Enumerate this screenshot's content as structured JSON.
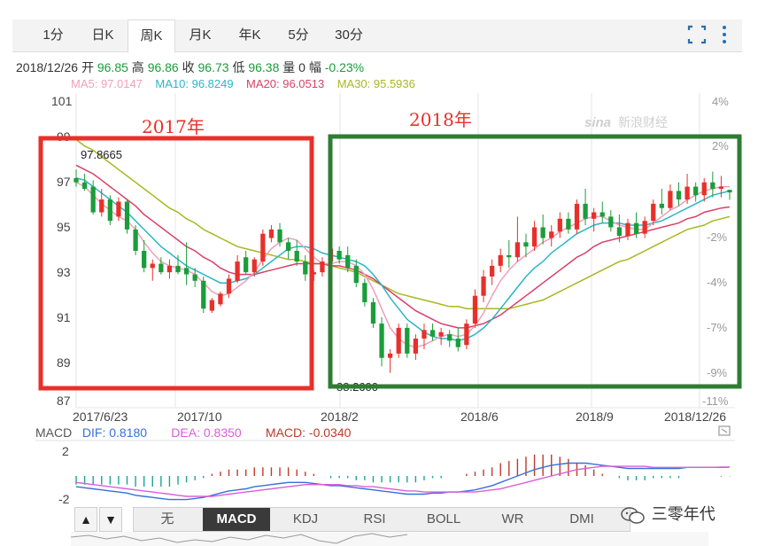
{
  "tabs": [
    "1分",
    "日K",
    "周K",
    "月K",
    "年K",
    "5分",
    "30分"
  ],
  "active_tab": "周K",
  "info": {
    "date": "2018/12/26",
    "open_label": "开",
    "open": "96.85",
    "high_label": "高",
    "high": "96.86",
    "close_label": "收",
    "close": "96.73",
    "low_label": "低",
    "low": "96.38",
    "volume_label": "量",
    "volume": "0",
    "change_label": "幅",
    "change": "-0.23%"
  },
  "ma": {
    "ma5": "MA5: 97.0147",
    "ma10": "MA10: 96.8249",
    "ma20": "MA20: 96.0513",
    "ma30": "MA30: 95.5936"
  },
  "colors": {
    "ma5": "#f0a0b8",
    "ma10": "#2bb5c8",
    "ma20": "#d9416a",
    "ma30": "#a8b820",
    "up": "#e8302a",
    "down": "#1a9d3a",
    "box2017": "#e8302a",
    "box2018": "#2e7d32"
  },
  "annotations": {
    "box2017_label": "2017年",
    "box2018_label": "2018年",
    "high_marker": "97.8665",
    "low_marker": "88.2600",
    "source_logo": "新浪财经",
    "source_logo_prefix": "sina"
  },
  "macd_bar": {
    "macd_label": "MACD",
    "dif": "DIF: 0.8180",
    "dea": "DEA: 0.8350",
    "macd": "MACD: -0.0340",
    "y_top": "2",
    "y_bottom": "-2"
  },
  "indicator_tabs": [
    "无",
    "MACD",
    "KDJ",
    "RSI",
    "BOLL",
    "WR",
    "DMI"
  ],
  "active_indicator": "MACD",
  "arrows": {
    "up": "▲",
    "down": "▼"
  },
  "watermark": "三零年代",
  "chart_data": {
    "type": "candlestick",
    "y_ticks": [
      "101",
      "99",
      "97",
      "95",
      "93",
      "91",
      "89",
      "87"
    ],
    "ylim": [
      87,
      101
    ],
    "pct_ticks": [
      "4%",
      "2%",
      "-2%",
      "-4%",
      "-7%",
      "-9%",
      "-11%"
    ],
    "x_ticks": [
      "2017/6/23",
      "2017/10",
      "2018/2",
      "2018/6",
      "2018/9",
      "2018/12/26"
    ],
    "candles": [
      [
        97.4,
        97.8,
        97.0,
        97.2
      ],
      [
        97.2,
        97.6,
        96.8,
        96.9
      ],
      [
        97.0,
        97.3,
        95.7,
        95.8
      ],
      [
        95.8,
        96.9,
        95.6,
        96.4
      ],
      [
        96.4,
        96.6,
        95.2,
        95.4
      ],
      [
        95.6,
        96.5,
        95.4,
        96.3
      ],
      [
        96.3,
        96.4,
        94.8,
        95.0
      ],
      [
        95.0,
        95.2,
        93.8,
        94.0
      ],
      [
        94.0,
        94.5,
        93.0,
        93.2
      ],
      [
        93.2,
        93.6,
        92.6,
        93.4
      ],
      [
        93.4,
        93.7,
        92.9,
        93.0
      ],
      [
        93.0,
        93.6,
        92.7,
        93.3
      ],
      [
        93.3,
        93.8,
        92.9,
        93.0
      ],
      [
        93.2,
        94.4,
        92.4,
        92.9
      ],
      [
        92.9,
        93.2,
        92.3,
        92.6
      ],
      [
        92.6,
        92.8,
        91.1,
        91.3
      ],
      [
        91.2,
        91.8,
        91.1,
        91.7
      ],
      [
        91.5,
        92.1,
        91.4,
        92.0
      ],
      [
        92.0,
        92.9,
        91.8,
        92.7
      ],
      [
        92.6,
        93.8,
        92.5,
        93.5
      ],
      [
        93.7,
        94.0,
        92.9,
        93.0
      ],
      [
        93.0,
        93.7,
        92.8,
        93.6
      ],
      [
        93.5,
        95.0,
        93.3,
        94.8
      ],
      [
        94.6,
        95.2,
        94.4,
        95.0
      ],
      [
        95.0,
        95.3,
        94.2,
        94.4
      ],
      [
        94.4,
        94.6,
        93.6,
        94.0
      ],
      [
        94.0,
        94.5,
        93.3,
        93.5
      ],
      [
        93.5,
        93.8,
        92.6,
        92.9
      ],
      [
        92.9,
        93.1,
        92.6,
        93.0
      ],
      [
        93.0,
        93.7,
        92.8,
        93.5
      ],
      [
        93.5,
        94.4,
        93.2,
        94.1
      ],
      [
        94.0,
        94.2,
        93.4,
        93.6
      ],
      [
        93.8,
        94.2,
        93.0,
        93.2
      ],
      [
        93.3,
        93.6,
        92.3,
        92.5
      ],
      [
        92.5,
        92.7,
        91.4,
        91.6
      ],
      [
        91.6,
        91.8,
        90.4,
        90.6
      ],
      [
        90.6,
        90.9,
        88.6,
        89.0
      ],
      [
        89.0,
        89.4,
        88.3,
        89.2
      ],
      [
        89.2,
        90.6,
        89.0,
        90.4
      ],
      [
        90.4,
        90.6,
        89.0,
        89.2
      ],
      [
        89.2,
        90.1,
        88.9,
        89.9
      ],
      [
        89.9,
        90.6,
        89.4,
        90.3
      ],
      [
        90.3,
        90.6,
        89.8,
        90.0
      ],
      [
        90.0,
        90.4,
        89.6,
        90.2
      ],
      [
        90.1,
        90.3,
        89.5,
        89.8
      ],
      [
        89.9,
        90.4,
        89.3,
        89.5
      ],
      [
        89.6,
        90.8,
        89.4,
        90.6
      ],
      [
        90.6,
        92.2,
        90.4,
        91.9
      ],
      [
        91.9,
        93.1,
        91.6,
        92.8
      ],
      [
        92.8,
        93.6,
        92.4,
        93.3
      ],
      [
        93.3,
        94.1,
        93.0,
        93.8
      ],
      [
        93.8,
        94.5,
        93.2,
        93.7
      ],
      [
        93.7,
        95.6,
        93.5,
        94.4
      ],
      [
        94.4,
        94.8,
        93.7,
        94.2
      ],
      [
        94.2,
        95.4,
        94.0,
        95.1
      ],
      [
        95.1,
        95.7,
        94.3,
        94.6
      ],
      [
        94.6,
        95.2,
        94.2,
        94.9
      ],
      [
        94.9,
        95.8,
        94.6,
        95.5
      ],
      [
        95.5,
        95.8,
        94.8,
        95.0
      ],
      [
        95.0,
        96.4,
        94.8,
        96.2
      ],
      [
        96.2,
        96.9,
        95.2,
        95.5
      ],
      [
        95.5,
        96.0,
        94.9,
        95.8
      ],
      [
        95.8,
        96.3,
        95.3,
        95.6
      ],
      [
        95.6,
        95.9,
        94.9,
        95.1
      ],
      [
        95.1,
        95.7,
        94.4,
        94.7
      ],
      [
        94.7,
        95.5,
        94.5,
        95.3
      ],
      [
        95.3,
        95.8,
        94.6,
        94.8
      ],
      [
        94.8,
        95.6,
        94.6,
        95.4
      ],
      [
        95.4,
        96.4,
        95.2,
        96.2
      ],
      [
        96.2,
        96.9,
        95.7,
        96.0
      ],
      [
        96.0,
        97.1,
        95.9,
        96.8
      ],
      [
        96.8,
        97.2,
        96.1,
        96.4
      ],
      [
        96.4,
        97.6,
        96.2,
        97.0
      ],
      [
        97.0,
        97.2,
        96.3,
        96.6
      ],
      [
        96.6,
        97.4,
        96.3,
        97.2
      ],
      [
        97.2,
        97.7,
        96.5,
        96.9
      ],
      [
        96.9,
        97.5,
        96.5,
        97.0
      ],
      [
        96.85,
        96.86,
        96.38,
        96.73
      ]
    ],
    "ma5": [
      97.2,
      97.0,
      96.6,
      96.2,
      95.9,
      95.6,
      95.4,
      95.0,
      94.4,
      93.9,
      93.5,
      93.3,
      93.2,
      93.1,
      92.9,
      92.5,
      92.1,
      91.9,
      92.0,
      92.3,
      92.6,
      93.0,
      93.6,
      94.1,
      94.4,
      94.6,
      94.5,
      94.1,
      93.7,
      93.4,
      93.4,
      93.5,
      93.5,
      93.3,
      92.9,
      92.2,
      91.3,
      90.4,
      89.9,
      89.6,
      89.5,
      89.6,
      89.8,
      90.0,
      90.1,
      90.0,
      90.1,
      90.5,
      91.1,
      91.9,
      92.6,
      93.1,
      93.5,
      93.8,
      94.1,
      94.4,
      94.6,
      94.9,
      95.1,
      95.3,
      95.5,
      95.6,
      95.6,
      95.4,
      95.2,
      95.1,
      95.0,
      95.0,
      95.3,
      95.6,
      95.9,
      96.1,
      96.4,
      96.6,
      96.8,
      96.9,
      97.0,
      97.0
    ],
    "ma10": [
      97.4,
      97.3,
      97.0,
      96.7,
      96.4,
      96.1,
      95.8,
      95.4,
      95.0,
      94.6,
      94.2,
      93.9,
      93.6,
      93.3,
      93.1,
      92.9,
      92.7,
      92.5,
      92.5,
      92.6,
      92.7,
      92.9,
      93.2,
      93.5,
      93.8,
      94.1,
      94.2,
      94.2,
      94.1,
      93.9,
      93.8,
      93.7,
      93.6,
      93.5,
      93.3,
      92.9,
      92.4,
      91.8,
      91.3,
      90.8,
      90.5,
      90.2,
      90.0,
      89.9,
      89.9,
      89.8,
      89.9,
      90.1,
      90.4,
      90.8,
      91.3,
      91.8,
      92.3,
      92.8,
      93.2,
      93.5,
      93.9,
      94.2,
      94.5,
      94.8,
      95.0,
      95.2,
      95.3,
      95.3,
      95.3,
      95.2,
      95.2,
      95.2,
      95.3,
      95.4,
      95.6,
      95.8,
      96.0,
      96.2,
      96.4,
      96.6,
      96.7,
      96.8
    ],
    "ma20": [
      98.0,
      97.8,
      97.6,
      97.3,
      97.0,
      96.7,
      96.4,
      96.1,
      95.7,
      95.4,
      95.1,
      94.8,
      94.5,
      94.2,
      94.0,
      93.7,
      93.5,
      93.2,
      93.0,
      92.9,
      92.9,
      92.9,
      93.0,
      93.1,
      93.2,
      93.3,
      93.4,
      93.4,
      93.4,
      93.4,
      93.3,
      93.3,
      93.2,
      93.1,
      92.9,
      92.7,
      92.4,
      92.1,
      91.8,
      91.5,
      91.2,
      91.0,
      90.8,
      90.6,
      90.5,
      90.4,
      90.4,
      90.5,
      90.6,
      90.8,
      91.0,
      91.3,
      91.6,
      91.9,
      92.2,
      92.5,
      92.8,
      93.1,
      93.4,
      93.7,
      93.9,
      94.2,
      94.4,
      94.5,
      94.6,
      94.7,
      94.8,
      94.9,
      95.0,
      95.1,
      95.2,
      95.3,
      95.5,
      95.6,
      95.8,
      95.9,
      96.0,
      96.05
    ],
    "ma30": [
      99.2,
      98.9,
      98.7,
      98.4,
      98.1,
      97.8,
      97.5,
      97.2,
      96.9,
      96.6,
      96.3,
      96.0,
      95.8,
      95.5,
      95.3,
      95.0,
      94.8,
      94.6,
      94.4,
      94.2,
      94.1,
      94.0,
      93.9,
      93.8,
      93.7,
      93.6,
      93.6,
      93.5,
      93.4,
      93.4,
      93.3,
      93.2,
      93.1,
      93.0,
      92.8,
      92.6,
      92.4,
      92.2,
      92.0,
      91.9,
      91.8,
      91.7,
      91.6,
      91.5,
      91.4,
      91.4,
      91.3,
      91.3,
      91.3,
      91.3,
      91.3,
      91.3,
      91.4,
      91.5,
      91.6,
      91.7,
      91.9,
      92.1,
      92.3,
      92.5,
      92.7,
      92.9,
      93.1,
      93.3,
      93.5,
      93.6,
      93.8,
      94.0,
      94.2,
      94.4,
      94.6,
      94.8,
      95.0,
      95.1,
      95.2,
      95.4,
      95.5,
      95.6
    ],
    "macd": {
      "ylim": [
        -2.4,
        2.4
      ],
      "dif": [
        -1.0,
        -1.1,
        -1.2,
        -1.3,
        -1.4,
        -1.5,
        -1.6,
        -1.8,
        -1.9,
        -2.0,
        -2.1,
        -2.2,
        -2.2,
        -2.2,
        -2.1,
        -2.0,
        -1.8,
        -1.6,
        -1.4,
        -1.3,
        -1.2,
        -1.0,
        -0.9,
        -0.8,
        -0.7,
        -0.6,
        -0.6,
        -0.6,
        -0.7,
        -0.8,
        -0.9,
        -0.9,
        -1.0,
        -1.1,
        -1.2,
        -1.3,
        -1.4,
        -1.5,
        -1.6,
        -1.7,
        -1.7,
        -1.7,
        -1.6,
        -1.6,
        -1.5,
        -1.5,
        -1.4,
        -1.3,
        -1.1,
        -0.9,
        -0.6,
        -0.3,
        0.0,
        0.3,
        0.6,
        0.8,
        1.0,
        1.1,
        1.2,
        1.2,
        1.2,
        1.1,
        1.0,
        0.9,
        0.8,
        0.7,
        0.7,
        0.7,
        0.7,
        0.7,
        0.7,
        0.7,
        0.8,
        0.8,
        0.8,
        0.8,
        0.8,
        0.82
      ],
      "dea": [
        -0.6,
        -0.7,
        -0.8,
        -0.9,
        -1.0,
        -1.1,
        -1.2,
        -1.3,
        -1.4,
        -1.5,
        -1.6,
        -1.7,
        -1.8,
        -1.9,
        -1.9,
        -1.9,
        -1.9,
        -1.8,
        -1.7,
        -1.6,
        -1.5,
        -1.4,
        -1.3,
        -1.2,
        -1.1,
        -1.0,
        -0.9,
        -0.8,
        -0.8,
        -0.8,
        -0.8,
        -0.8,
        -0.9,
        -0.9,
        -1.0,
        -1.0,
        -1.1,
        -1.2,
        -1.3,
        -1.4,
        -1.4,
        -1.5,
        -1.5,
        -1.5,
        -1.5,
        -1.5,
        -1.5,
        -1.5,
        -1.4,
        -1.3,
        -1.2,
        -1.0,
        -0.8,
        -0.6,
        -0.4,
        -0.2,
        0.0,
        0.2,
        0.4,
        0.6,
        0.7,
        0.8,
        0.9,
        0.9,
        0.9,
        0.9,
        0.9,
        0.9,
        0.8,
        0.8,
        0.8,
        0.8,
        0.8,
        0.8,
        0.8,
        0.8,
        0.83,
        0.835
      ]
    }
  }
}
